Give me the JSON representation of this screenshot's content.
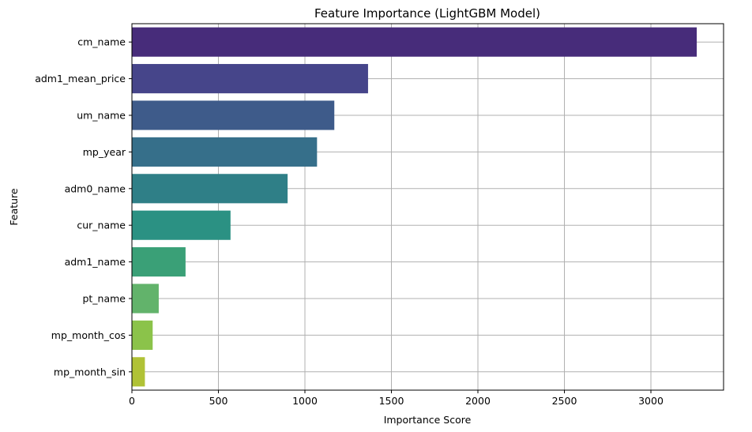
{
  "chart_data": {
    "type": "bar",
    "orientation": "horizontal",
    "title": "Feature Importance (LightGBM Model)",
    "xlabel": "Importance Score",
    "ylabel": "Feature",
    "xlim": [
      0,
      3420
    ],
    "xticks": [
      0,
      500,
      1000,
      1500,
      2000,
      2500,
      3000
    ],
    "grid": true,
    "categories": [
      "cm_name",
      "adm1_mean_price",
      "um_name",
      "mp_year",
      "adm0_name",
      "cur_name",
      "adm1_name",
      "pt_name",
      "mp_month_cos",
      "mp_month_sin"
    ],
    "values": [
      3265,
      1365,
      1170,
      1070,
      900,
      570,
      310,
      155,
      120,
      75
    ],
    "colors": [
      "#472c7a",
      "#46458a",
      "#3e5b8a",
      "#366f8a",
      "#2f7f87",
      "#2b9183",
      "#3aa077",
      "#62b36b",
      "#8bc34a",
      "#b0c236"
    ]
  }
}
